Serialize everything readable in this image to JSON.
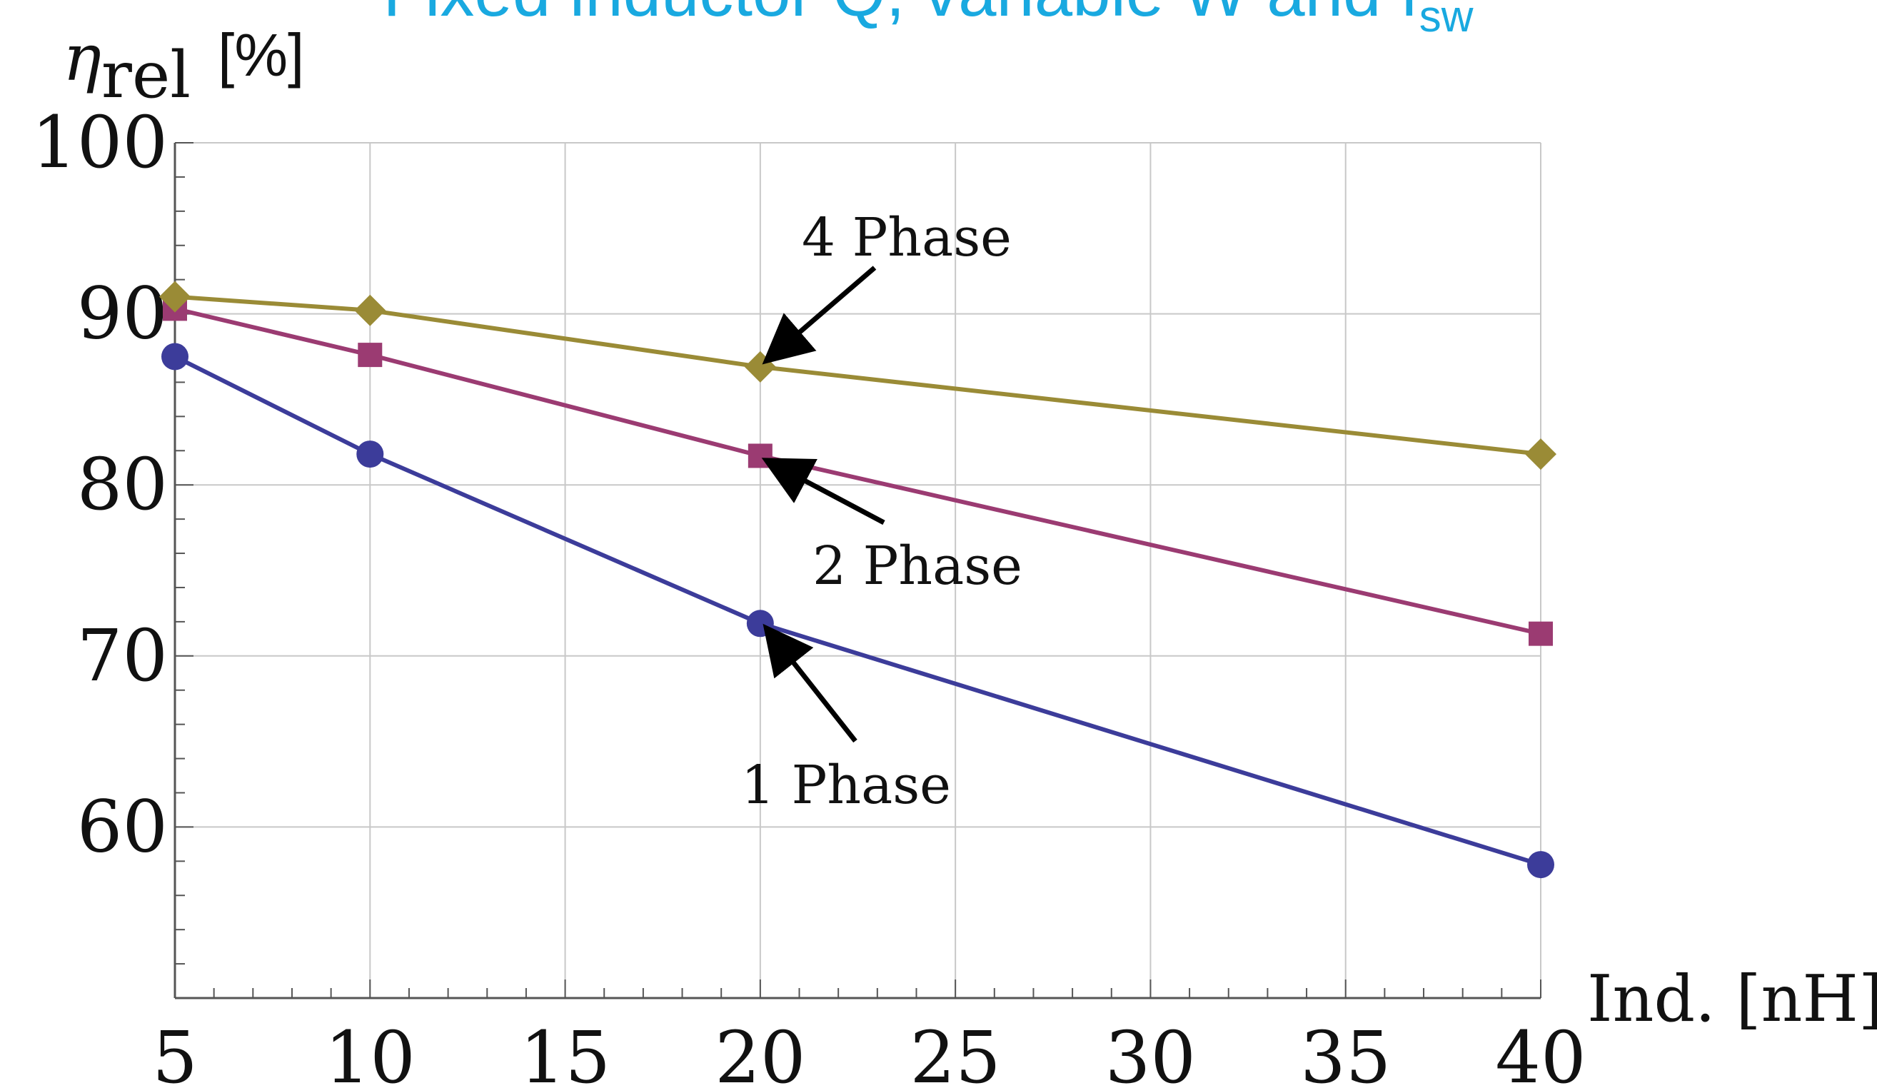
{
  "chart_data": {
    "type": "line",
    "title": "Fixed inductor Q, variable W and f",
    "title_subscript": "sw",
    "ylabel_symbol": "η",
    "ylabel_subscript": "rel",
    "ylabel_unit": "[%]",
    "xlabel": "Ind. [nH]",
    "x": [
      5,
      10,
      20,
      40
    ],
    "xlim": [
      5,
      40
    ],
    "ylim": [
      50,
      100
    ],
    "xticks": [
      5,
      10,
      15,
      20,
      25,
      30,
      35,
      40
    ],
    "yticks": [
      60,
      70,
      80,
      90,
      100
    ],
    "grid": true,
    "series": [
      {
        "name": "1 Phase",
        "color": "#3c3c9a",
        "marker": "circle",
        "values": [
          87.5,
          81.8,
          71.9,
          57.8
        ]
      },
      {
        "name": "2 Phase",
        "color": "#9b3b72",
        "marker": "square",
        "values": [
          90.3,
          87.6,
          81.7,
          71.3
        ]
      },
      {
        "name": "4 Phase",
        "color": "#9a8b36",
        "marker": "diamond",
        "values": [
          91.0,
          90.2,
          86.9,
          81.8
        ]
      }
    ],
    "annotations": [
      {
        "text": "4 Phase",
        "series": "4 Phase",
        "x": 20
      },
      {
        "text": "2 Phase",
        "series": "2 Phase",
        "x": 20
      },
      {
        "text": "1 Phase",
        "series": "1 Phase",
        "x": 20
      }
    ]
  }
}
